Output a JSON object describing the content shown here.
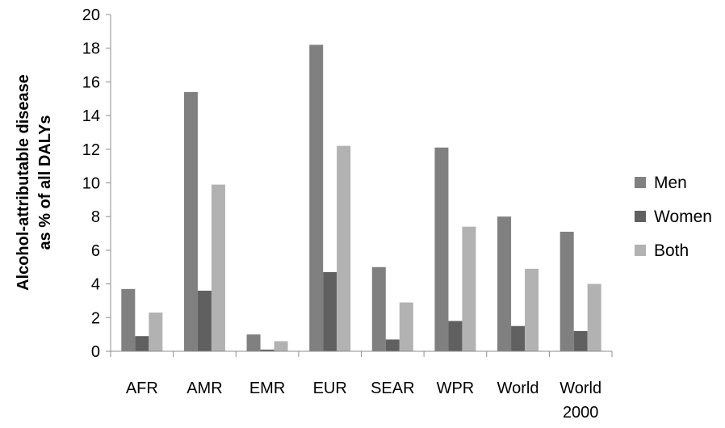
{
  "chart_data": {
    "type": "bar",
    "title": "",
    "xlabel": "",
    "ylabel": "Alcohol-attributable disease as % of all DALYs",
    "ylabel_lines": [
      "Alcohol-attributable disease",
      "as % of all DALYs"
    ],
    "ylim": [
      0,
      20
    ],
    "yticks": [
      0,
      2,
      4,
      6,
      8,
      10,
      12,
      14,
      16,
      18,
      20
    ],
    "grid": false,
    "legend_position": "right",
    "categories": [
      "AFR",
      "AMR",
      "EMR",
      "EUR",
      "SEAR",
      "WPR",
      "World",
      "World 2000"
    ],
    "category_lines": [
      [
        "AFR"
      ],
      [
        "AMR"
      ],
      [
        "EMR"
      ],
      [
        "EUR"
      ],
      [
        "SEAR"
      ],
      [
        "WPR"
      ],
      [
        "World"
      ],
      [
        "World",
        "2000"
      ]
    ],
    "series": [
      {
        "name": "Men",
        "color": "#808080",
        "values": [
          3.7,
          15.4,
          1.0,
          18.2,
          5.0,
          12.1,
          8.0,
          7.1
        ]
      },
      {
        "name": "Women",
        "color": "#606060",
        "values": [
          0.9,
          3.6,
          0.1,
          4.7,
          0.7,
          1.8,
          1.5,
          1.2
        ]
      },
      {
        "name": "Both",
        "color": "#b2b2b2",
        "values": [
          2.3,
          9.9,
          0.6,
          12.2,
          2.9,
          7.4,
          4.9,
          4.0
        ]
      }
    ]
  }
}
